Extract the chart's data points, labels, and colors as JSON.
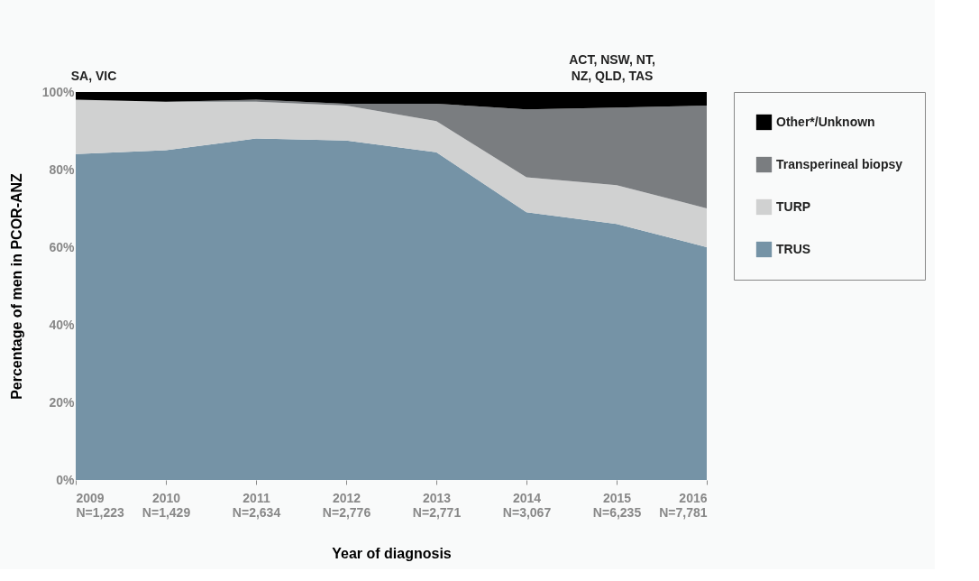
{
  "chart_data": {
    "type": "area",
    "stacked": true,
    "xlabel": "Year of diagnosis",
    "ylabel": "Percentage of men in PCOR-ANZ",
    "categories": [
      "2009\nN=1,223",
      "2010\nN=1,429",
      "2011\nN=2,634",
      "2012\nN=2,776",
      "2013\nN=2,771",
      "2014\nN=3,067",
      "2015\nN=6,235",
      "2016\nN=7,781"
    ],
    "series": [
      {
        "name": "TRUS",
        "color": "#7593a6",
        "values": [
          84,
          85,
          88,
          87.5,
          84.5,
          69,
          66,
          60
        ]
      },
      {
        "name": "TURP",
        "color": "#d0d1d1",
        "values": [
          14,
          12.5,
          9.5,
          9,
          8,
          9,
          10,
          10
        ]
      },
      {
        "name": "Transperineal biopsy",
        "color": "#7a7d80",
        "values": [
          0,
          0,
          0.5,
          0.5,
          4.5,
          17.5,
          20,
          26.5
        ]
      },
      {
        "name": "Other*/Unknown",
        "color": "#000000",
        "values": [
          2,
          2.5,
          2,
          3,
          3,
          4.5,
          4,
          3.5
        ]
      }
    ],
    "ylim": [
      0,
      100
    ],
    "yticks": [
      {
        "value": 0,
        "label": "0%"
      },
      {
        "value": 20,
        "label": "20%"
      },
      {
        "value": 40,
        "label": "40%"
      },
      {
        "value": 60,
        "label": "60%"
      },
      {
        "value": 80,
        "label": "80%"
      },
      {
        "value": 100,
        "label": "100%"
      }
    ],
    "grid": false,
    "legend": "right",
    "annotations": [
      "SA, VIC",
      "ACT, NSW, NT,\nNZ, QLD, TAS"
    ]
  }
}
